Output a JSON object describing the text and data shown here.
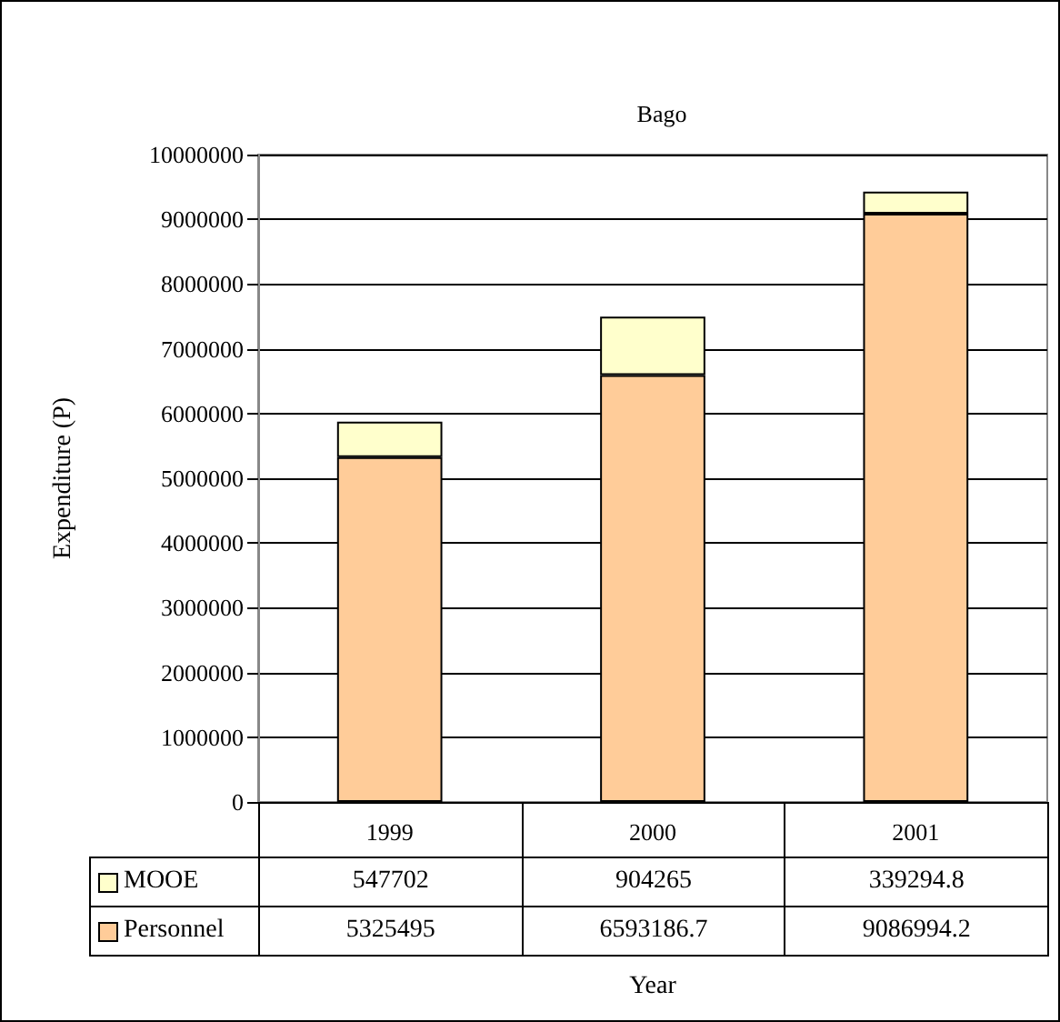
{
  "chart_data": {
    "type": "bar",
    "title": "Bago",
    "xlabel": "Year",
    "ylabel": "Expenditure (P)",
    "categories": [
      "1999",
      "2000",
      "2001"
    ],
    "stacked": true,
    "legend": "bottom",
    "data_labels": true,
    "grid": "y",
    "ylim": [
      0,
      10000000
    ],
    "yticks": [
      0,
      1000000,
      2000000,
      3000000,
      4000000,
      5000000,
      6000000,
      7000000,
      8000000,
      9000000,
      10000000
    ],
    "series": [
      {
        "name": "Personnel",
        "color": "#ffcc99",
        "values": [
          5325495,
          6593186.7,
          9086994.2
        ]
      },
      {
        "name": "MOOE",
        "color": "#ffffcc",
        "values": [
          547702,
          904265,
          339294.8
        ]
      }
    ]
  }
}
